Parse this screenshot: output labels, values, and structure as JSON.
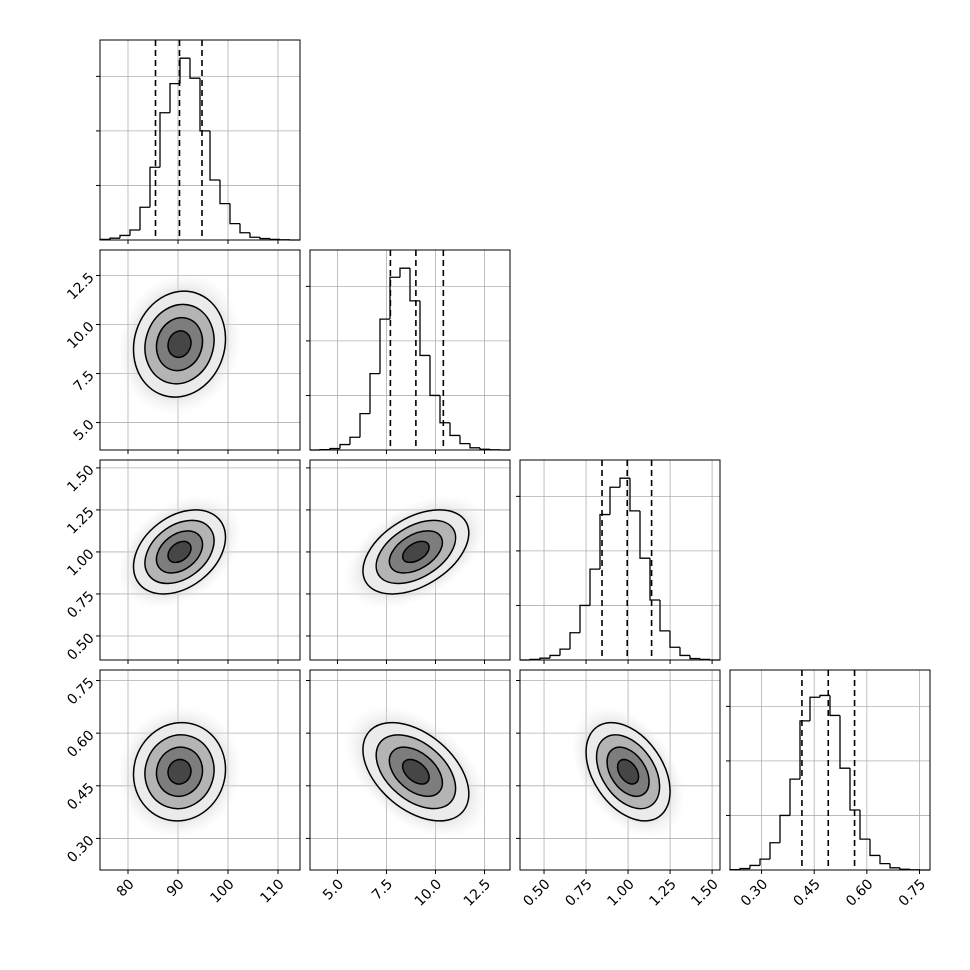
{
  "chart_data": {
    "type": "corner",
    "grid": true,
    "color": "#000000",
    "hist_ylim": [
      0,
      1100
    ],
    "hist_yticks": [
      300,
      600,
      900
    ],
    "contour_levels": [
      0.5,
      1,
      1.5,
      2
    ],
    "params": [
      {
        "lim": [
          74.4,
          114.4
        ],
        "ticks": [
          80,
          90,
          100,
          110
        ],
        "bins": [
          74.4,
          76.4,
          78.4,
          80.4,
          82.4,
          84.4,
          86.4,
          88.4,
          90.4,
          92.4,
          94.4,
          96.4,
          98.4,
          100.4,
          102.4,
          104.4,
          106.4,
          108.4,
          110.4,
          112.4,
          114.4
        ],
        "counts": [
          3,
          10,
          25,
          55,
          180,
          400,
          700,
          860,
          1000,
          890,
          600,
          330,
          200,
          90,
          40,
          15,
          8,
          3,
          1,
          0
        ],
        "quantiles": [
          85.5,
          90.3,
          94.8
        ],
        "mean": 90.3,
        "sd": 4.6
      },
      {
        "lim": [
          3.6,
          13.8
        ],
        "ticks": [
          {
            "value": 5,
            "label": "5.0"
          },
          7.5,
          {
            "value": 10,
            "label": "10.0"
          },
          12.5
        ],
        "bins": [
          3.6,
          4.11,
          4.62,
          5.13,
          5.64,
          6.15,
          6.66,
          7.17,
          7.68,
          8.19,
          8.7,
          9.21,
          9.72,
          10.23,
          10.74,
          11.25,
          11.76,
          12.27,
          12.78,
          13.29,
          13.8
        ],
        "counts": [
          0,
          2,
          8,
          30,
          70,
          200,
          420,
          720,
          950,
          1000,
          820,
          520,
          300,
          150,
          80,
          35,
          12,
          4,
          1,
          0
        ],
        "quantiles": [
          7.7,
          9.0,
          10.4
        ],
        "mean": 9.0,
        "sd": 1.35
      },
      {
        "lim": [
          0.357,
          1.547
        ],
        "ticks": [
          {
            "value": 0.5,
            "label": "0.50"
          },
          0.75,
          {
            "value": 1,
            "label": "1.00"
          },
          1.25,
          {
            "value": 1.5,
            "label": "1.50"
          }
        ],
        "bins": [
          0.357,
          0.4165,
          0.476,
          0.5355,
          0.595,
          0.6545,
          0.714,
          0.7735,
          0.833,
          0.8925,
          0.952,
          1.0115,
          1.071,
          1.1305,
          1.19,
          1.2495,
          1.309,
          1.3685,
          1.428,
          1.4875,
          1.547
        ],
        "counts": [
          0,
          3,
          10,
          25,
          60,
          150,
          300,
          500,
          800,
          950,
          1000,
          820,
          560,
          330,
          160,
          70,
          25,
          8,
          3,
          0
        ],
        "quantiles": [
          0.845,
          0.995,
          1.14
        ],
        "mean": 1.0,
        "sd": 0.125
      },
      {
        "lim": [
          0.21,
          0.78
        ],
        "ticks": [
          {
            "value": 0.3,
            "label": "0.30"
          },
          0.45,
          {
            "value": 0.6,
            "label": "0.60"
          },
          0.75
        ],
        "bins": [
          0.21,
          0.2385,
          0.267,
          0.2955,
          0.324,
          0.3525,
          0.381,
          0.4095,
          0.438,
          0.4665,
          0.495,
          0.5235,
          0.552,
          0.5805,
          0.609,
          0.6375,
          0.666,
          0.6945,
          0.723,
          0.7515,
          0.78
        ],
        "counts": [
          2,
          8,
          25,
          60,
          150,
          300,
          500,
          820,
          950,
          960,
          850,
          560,
          330,
          170,
          80,
          35,
          12,
          4,
          1,
          0
        ],
        "quantiles": [
          0.415,
          0.49,
          0.565
        ],
        "mean": 0.49,
        "sd": 0.07
      }
    ],
    "correlations": [
      [
        0.1
      ],
      [
        0.35,
        0.45
      ],
      [
        0.05,
        -0.45,
        -0.4
      ]
    ]
  }
}
